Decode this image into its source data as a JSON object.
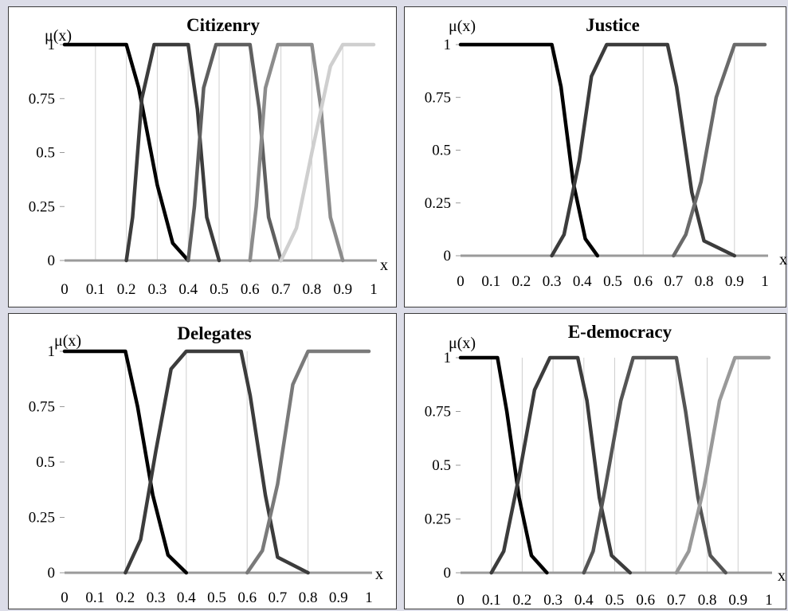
{
  "figure": {
    "background": "#dcdde8",
    "line_colors": [
      "#000000",
      "#3c3c3c",
      "#5f5f5f",
      "#8c8c8c",
      "#cfcfcf"
    ]
  },
  "chart_data": [
    {
      "type": "line",
      "title": "Citizenry",
      "ylabel": "μ(x)",
      "xlabel": "x",
      "xlim": [
        0,
        1
      ],
      "ylim": [
        0,
        1
      ],
      "x_ticks": [
        "0",
        "0.1",
        "0.2",
        "0.3",
        "0.4",
        "0.5",
        "0.6",
        "0.7",
        "0.8",
        "0.9",
        "1"
      ],
      "y_ticks": [
        "0",
        "0.25",
        "0.5",
        "0.75",
        "1"
      ],
      "gridlines_x": [
        0.1,
        0.2,
        0.3,
        0.4,
        0.5,
        0.6,
        0.7,
        0.8,
        0.9
      ],
      "series": [
        {
          "color": "#000000",
          "points": [
            [
              0,
              1
            ],
            [
              0.2,
              1
            ],
            [
              0.24,
              0.8
            ],
            [
              0.3,
              0.35
            ],
            [
              0.35,
              0.08
            ],
            [
              0.4,
              0
            ]
          ]
        },
        {
          "color": "#3c3c3c",
          "points": [
            [
              0.2,
              0
            ],
            [
              0.22,
              0.2
            ],
            [
              0.25,
              0.75
            ],
            [
              0.29,
              1
            ],
            [
              0.4,
              1
            ],
            [
              0.43,
              0.7
            ],
            [
              0.46,
              0.2
            ],
            [
              0.5,
              0
            ]
          ]
        },
        {
          "color": "#5f5f5f",
          "points": [
            [
              0.4,
              0
            ],
            [
              0.42,
              0.25
            ],
            [
              0.45,
              0.8
            ],
            [
              0.49,
              1
            ],
            [
              0.6,
              1
            ],
            [
              0.63,
              0.7
            ],
            [
              0.66,
              0.2
            ],
            [
              0.7,
              0
            ]
          ]
        },
        {
          "color": "#8c8c8c",
          "points": [
            [
              0.6,
              0
            ],
            [
              0.62,
              0.25
            ],
            [
              0.65,
              0.8
            ],
            [
              0.69,
              1
            ],
            [
              0.8,
              1
            ],
            [
              0.83,
              0.7
            ],
            [
              0.86,
              0.2
            ],
            [
              0.9,
              0
            ]
          ]
        },
        {
          "color": "#cfcfcf",
          "points": [
            [
              0.7,
              0
            ],
            [
              0.75,
              0.15
            ],
            [
              0.8,
              0.5
            ],
            [
              0.86,
              0.9
            ],
            [
              0.9,
              1
            ],
            [
              1,
              1
            ]
          ]
        }
      ]
    },
    {
      "type": "line",
      "title": "Justice",
      "ylabel": "μ(x)",
      "xlabel": "x",
      "xlim": [
        0,
        1
      ],
      "ylim": [
        0,
        1
      ],
      "x_ticks": [
        "0",
        "0.1",
        "0.2",
        "0.3",
        "0.4",
        "0.5",
        "0.6",
        "0.7",
        "0.8",
        "0.9",
        "1"
      ],
      "y_ticks": [
        "0",
        "0.25",
        "0.5",
        "0.75",
        "1"
      ],
      "gridlines_x": [
        0.3,
        0.6,
        0.9
      ],
      "series": [
        {
          "color": "#000000",
          "points": [
            [
              0,
              1
            ],
            [
              0.3,
              1
            ],
            [
              0.33,
              0.8
            ],
            [
              0.37,
              0.35
            ],
            [
              0.41,
              0.08
            ],
            [
              0.45,
              0
            ]
          ]
        },
        {
          "color": "#3c3c3c",
          "points": [
            [
              0.3,
              0
            ],
            [
              0.34,
              0.1
            ],
            [
              0.39,
              0.45
            ],
            [
              0.43,
              0.85
            ],
            [
              0.48,
              1
            ],
            [
              0.68,
              1
            ],
            [
              0.71,
              0.8
            ],
            [
              0.76,
              0.3
            ],
            [
              0.8,
              0.07
            ],
            [
              0.9,
              0
            ]
          ]
        },
        {
          "color": "#6a6a6a",
          "points": [
            [
              0.7,
              0
            ],
            [
              0.74,
              0.1
            ],
            [
              0.79,
              0.35
            ],
            [
              0.84,
              0.75
            ],
            [
              0.9,
              1
            ],
            [
              1,
              1
            ]
          ]
        }
      ]
    },
    {
      "type": "line",
      "title": "Delegates",
      "ylabel": "μ(x)",
      "xlabel": "x",
      "xlim": [
        0,
        1
      ],
      "ylim": [
        0,
        1
      ],
      "x_ticks": [
        "0",
        "0.1",
        "0.2",
        "0.3",
        "0.4",
        "0.5",
        "0.6",
        "0.7",
        "0.8",
        "0.9",
        "1"
      ],
      "y_ticks": [
        "0",
        "0.25",
        "0.5",
        "0.75",
        "1"
      ],
      "gridlines_x": [
        0.2,
        0.4,
        0.6,
        0.8
      ],
      "series": [
        {
          "color": "#000000",
          "points": [
            [
              0,
              1
            ],
            [
              0.2,
              1
            ],
            [
              0.24,
              0.75
            ],
            [
              0.29,
              0.35
            ],
            [
              0.34,
              0.08
            ],
            [
              0.4,
              0
            ]
          ]
        },
        {
          "color": "#3c3c3c",
          "points": [
            [
              0.2,
              0
            ],
            [
              0.25,
              0.15
            ],
            [
              0.3,
              0.55
            ],
            [
              0.35,
              0.92
            ],
            [
              0.4,
              1
            ],
            [
              0.58,
              1
            ],
            [
              0.61,
              0.8
            ],
            [
              0.66,
              0.35
            ],
            [
              0.7,
              0.07
            ],
            [
              0.8,
              0
            ]
          ]
        },
        {
          "color": "#7a7a7a",
          "points": [
            [
              0.6,
              0
            ],
            [
              0.65,
              0.1
            ],
            [
              0.7,
              0.4
            ],
            [
              0.75,
              0.85
            ],
            [
              0.8,
              1
            ],
            [
              1,
              1
            ]
          ]
        }
      ]
    },
    {
      "type": "line",
      "title": "E-democracy",
      "ylabel": "μ(x)",
      "xlabel": "x",
      "xlim": [
        0,
        1
      ],
      "ylim": [
        0,
        1
      ],
      "x_ticks": [
        "0",
        "0.1",
        "0.2",
        "0.3",
        "0.4",
        "0.5",
        "0.6",
        "0.7",
        "0.8",
        "0.9",
        "1"
      ],
      "y_ticks": [
        "0",
        "0.25",
        "0.5",
        "0.75",
        "1"
      ],
      "gridlines_x": [
        0.1,
        0.2,
        0.3,
        0.4,
        0.5,
        0.6,
        0.7,
        0.8,
        0.9
      ],
      "series": [
        {
          "color": "#000000",
          "points": [
            [
              0,
              1
            ],
            [
              0.12,
              1
            ],
            [
              0.15,
              0.75
            ],
            [
              0.19,
              0.35
            ],
            [
              0.23,
              0.08
            ],
            [
              0.28,
              0
            ]
          ]
        },
        {
          "color": "#3c3c3c",
          "points": [
            [
              0.1,
              0
            ],
            [
              0.14,
              0.1
            ],
            [
              0.19,
              0.45
            ],
            [
              0.24,
              0.85
            ],
            [
              0.29,
              1
            ],
            [
              0.38,
              1
            ],
            [
              0.41,
              0.8
            ],
            [
              0.45,
              0.35
            ],
            [
              0.49,
              0.08
            ],
            [
              0.55,
              0
            ]
          ]
        },
        {
          "color": "#555555",
          "points": [
            [
              0.4,
              0
            ],
            [
              0.43,
              0.1
            ],
            [
              0.47,
              0.4
            ],
            [
              0.52,
              0.8
            ],
            [
              0.56,
              1
            ],
            [
              0.7,
              1
            ],
            [
              0.73,
              0.75
            ],
            [
              0.77,
              0.35
            ],
            [
              0.81,
              0.08
            ],
            [
              0.86,
              0
            ]
          ]
        },
        {
          "color": "#999999",
          "points": [
            [
              0.7,
              0
            ],
            [
              0.74,
              0.1
            ],
            [
              0.79,
              0.4
            ],
            [
              0.84,
              0.8
            ],
            [
              0.89,
              1
            ],
            [
              1,
              1
            ]
          ]
        }
      ]
    }
  ]
}
